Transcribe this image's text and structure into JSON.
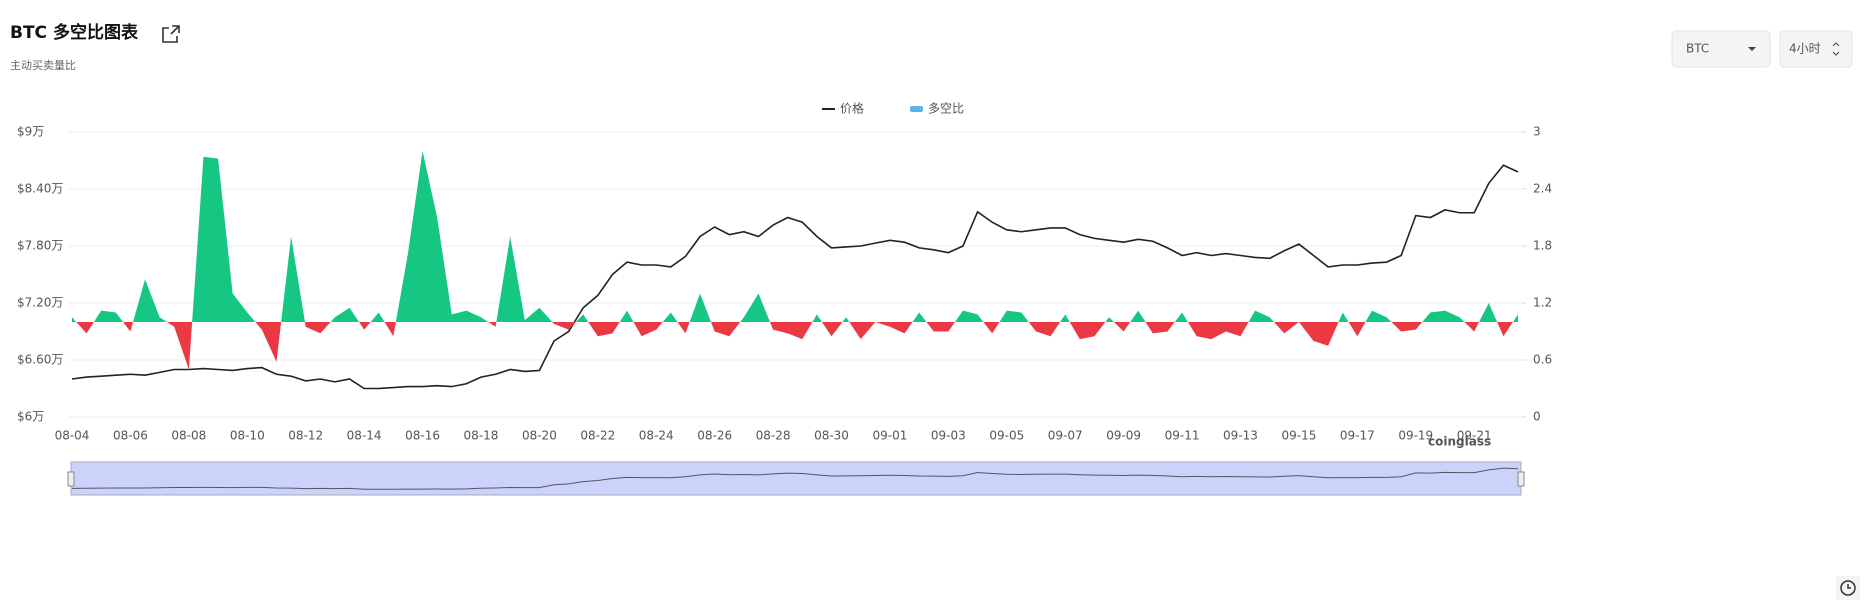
{
  "header": {
    "title": "BTC 多空比图表",
    "subtitle": "主动买卖量比",
    "symbol": "BTC",
    "interval": "4小时"
  },
  "chart_data": {
    "type": "line-area",
    "watermark": "coinglass",
    "categories": [
      "08-04",
      null,
      null,
      null,
      "08-06",
      null,
      null,
      null,
      "08-08",
      null,
      null,
      null,
      "08-10",
      null,
      null,
      null,
      "08-12",
      null,
      null,
      null,
      "08-14",
      null,
      null,
      null,
      "08-16",
      null,
      null,
      null,
      "08-18",
      null,
      null,
      null,
      "08-20",
      null,
      null,
      null,
      "08-22",
      null,
      null,
      null,
      "08-24",
      null,
      null,
      null,
      "08-26",
      null,
      null,
      null,
      "08-28",
      null,
      null,
      null,
      "08-30",
      null,
      null,
      null,
      "09-01",
      null,
      null,
      null,
      "09-03",
      null,
      null,
      null,
      "09-05",
      null,
      null,
      null,
      "09-07",
      null,
      null,
      null,
      "09-09",
      null,
      null,
      null,
      "09-11",
      null,
      null,
      null,
      "09-13",
      null,
      null,
      null,
      "09-15",
      null,
      null,
      null,
      "09-17",
      null,
      null,
      null,
      "09-19",
      null,
      null,
      null,
      "09-21",
      null,
      null,
      null
    ],
    "series": [
      {
        "name": "价格",
        "color": "#222222",
        "axis": "y",
        "values": [
          64000,
          64200,
          64300,
          64400,
          64500,
          64400,
          64700,
          65000,
          65000,
          65100,
          65000,
          64900,
          65100,
          65200,
          64500,
          64300,
          63800,
          64000,
          63700,
          64000,
          63000,
          63000,
          63100,
          63200,
          63200,
          63300,
          63200,
          63500,
          64200,
          64500,
          65000,
          64800,
          64900,
          68000,
          69000,
          71500,
          72800,
          75000,
          76300,
          76000,
          76000,
          75800,
          76900,
          79000,
          80000,
          79200,
          79500,
          79000,
          80200,
          81000,
          80500,
          79000,
          77800,
          77900,
          78000,
          78300,
          78600,
          78400,
          77800,
          77600,
          77300,
          78000,
          81600,
          80500,
          79700,
          79500,
          79700,
          79900,
          79900,
          79200,
          78800,
          78600,
          78400,
          78700,
          78500,
          77800,
          77000,
          77300,
          77000,
          77200,
          77000,
          76800,
          76700,
          77500,
          78200,
          77000,
          75800,
          76000,
          76000,
          76200,
          76300,
          77000,
          81200,
          81000,
          81800,
          81500,
          81500,
          84600,
          86500,
          85800
        ]
      },
      {
        "name": "多空比",
        "color": "#5ab4e5",
        "up_color": "#16c784",
        "down_color": "#ea3943",
        "axis": "y2",
        "values": [
          1.05,
          0.88,
          1.12,
          1.1,
          0.9,
          1.45,
          1.05,
          0.95,
          0.5,
          2.74,
          2.72,
          1.3,
          1.1,
          0.92,
          0.58,
          1.9,
          0.95,
          0.88,
          1.05,
          1.15,
          0.92,
          1.1,
          0.85,
          1.72,
          2.8,
          2.1,
          1.08,
          1.12,
          1.05,
          0.95,
          1.9,
          1.02,
          1.15,
          0.98,
          0.92,
          1.08,
          0.85,
          0.88,
          1.12,
          0.85,
          0.92,
          1.1,
          0.88,
          1.3,
          0.9,
          0.85,
          1.05,
          1.3,
          0.92,
          0.88,
          0.82,
          1.08,
          0.85,
          1.05,
          0.82,
          1.0,
          0.95,
          0.88,
          1.1,
          0.9,
          0.9,
          1.12,
          1.08,
          0.88,
          1.12,
          1.1,
          0.9,
          0.85,
          1.08,
          0.82,
          0.85,
          1.05,
          0.9,
          1.12,
          0.88,
          0.9,
          1.1,
          0.85,
          0.82,
          0.9,
          0.85,
          1.12,
          1.05,
          0.88,
          1.0,
          0.8,
          0.75,
          1.1,
          0.85,
          1.12,
          1.05,
          0.9,
          0.92,
          1.1,
          1.12,
          1.05,
          0.9,
          1.2,
          0.85,
          1.08
        ]
      }
    ],
    "ylim": [
      60000,
      90000
    ],
    "yticks": [
      {
        "value": 60000,
        "label": "$6万"
      },
      {
        "value": 66000,
        "label": "$6.60万"
      },
      {
        "value": 72000,
        "label": "$7.20万"
      },
      {
        "value": 78000,
        "label": "$7.80万"
      },
      {
        "value": 84000,
        "label": "$8.40万"
      },
      {
        "value": 90000,
        "label": "$9万"
      }
    ],
    "y2lim": [
      0,
      3
    ],
    "y2ticks": [
      0,
      0.6,
      1.2,
      1.8,
      2.4,
      3
    ],
    "grid": true,
    "legend": "top"
  }
}
